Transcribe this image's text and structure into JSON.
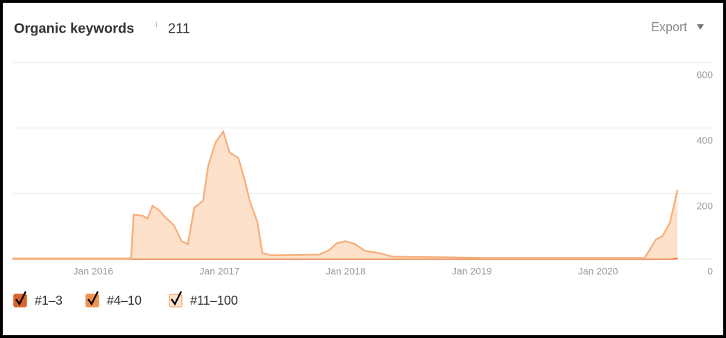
{
  "chart_data": {
    "type": "stacked-area",
    "title": "Organic keywords",
    "title_note": "i",
    "total": 211,
    "export_button": "Export",
    "x": [
      2015.36,
      2016.3,
      2016.32,
      2016.39,
      2016.43,
      2016.47,
      2016.52,
      2016.57,
      2016.64,
      2016.7,
      2016.75,
      2016.8,
      2016.87,
      2016.91,
      2016.97,
      2017.03,
      2017.08,
      2017.15,
      2017.2,
      2017.24,
      2017.3,
      2017.34,
      2017.41,
      2017.79,
      2017.87,
      2017.93,
      2018.0,
      2018.07,
      2018.15,
      2018.26,
      2018.37,
      2018.78,
      2019.11,
      2020.37,
      2020.46,
      2020.51,
      2020.57,
      2020.63
    ],
    "series": [
      {
        "name": "#1–3",
        "color": "#d9622b",
        "values": [
          0,
          0,
          0,
          0,
          0,
          0,
          0,
          0,
          0,
          0,
          0,
          0,
          0,
          0,
          0,
          0,
          0,
          0,
          0,
          0,
          0,
          0,
          0,
          0,
          0,
          0,
          0,
          0,
          0,
          0,
          0,
          0,
          0,
          0,
          0,
          0,
          0,
          1
        ]
      },
      {
        "name": "#4–10",
        "color": "#f0904f",
        "values": [
          1,
          1,
          1,
          1,
          1,
          1,
          1,
          1,
          1,
          1,
          1,
          1,
          1,
          1,
          1,
          1,
          1,
          1,
          1,
          1,
          1,
          1,
          1,
          1,
          1,
          1,
          1,
          1,
          1,
          1,
          1,
          1,
          1,
          1,
          1,
          1,
          1,
          3
        ]
      },
      {
        "name": "#11–100",
        "color": "#f7b07e",
        "fill": "#fde1cb",
        "values": [
          0,
          0,
          134,
          131,
          122,
          161,
          148,
          127,
          101,
          53,
          44,
          155,
          176,
          282,
          356,
          388,
          324,
          307,
          240,
          176,
          112,
          17,
          10,
          12,
          26,
          47,
          53,
          45,
          24,
          17,
          6,
          4,
          2,
          2,
          59,
          68,
          110,
          207
        ]
      }
    ],
    "xlim": [
      2015.36,
      2020.64
    ],
    "xticks": [
      {
        "value": 2016,
        "label": "Jan 2016"
      },
      {
        "value": 2017,
        "label": "Jan 2017"
      },
      {
        "value": 2018,
        "label": "Jan 2018"
      },
      {
        "value": 2019,
        "label": "Jan 2019"
      },
      {
        "value": 2020,
        "label": "Jan 2020"
      }
    ],
    "ylim": [
      0,
      600
    ],
    "yticks": [
      0,
      200,
      400,
      600
    ],
    "grid": true
  }
}
